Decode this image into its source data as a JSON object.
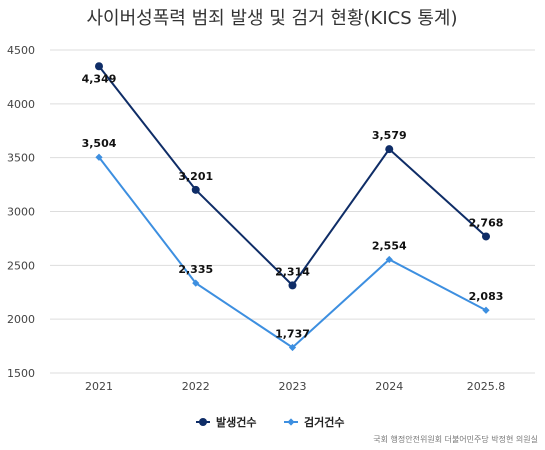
{
  "chart_data": {
    "type": "line",
    "title": "사이버성폭력 범죄 발생 및 검거 현황(KICS 통계)",
    "categories": [
      "2021",
      "2022",
      "2023",
      "2024",
      "2025.8"
    ],
    "ylim": [
      1500,
      4500
    ],
    "yticks": [
      1500,
      2000,
      2500,
      3000,
      3500,
      4000,
      4500
    ],
    "grid": true,
    "legend_position": "bottom",
    "series": [
      {
        "name": "발생건수",
        "values": [
          4349,
          3201,
          2314,
          3579,
          2768
        ],
        "labels": [
          "4,349",
          "3,201",
          "2,314",
          "3,579",
          "2,768"
        ],
        "color": "#0f2d67",
        "marker": "circle"
      },
      {
        "name": "검거건수",
        "values": [
          3504,
          2335,
          1737,
          2554,
          2083
        ],
        "labels": [
          "3,504",
          "2,335",
          "1,737",
          "2,554",
          "2,083"
        ],
        "color": "#3d8fe0",
        "marker": "diamond"
      }
    ],
    "source": "국회 행정안전위원회 더불어민주당 박정현 의원실"
  }
}
